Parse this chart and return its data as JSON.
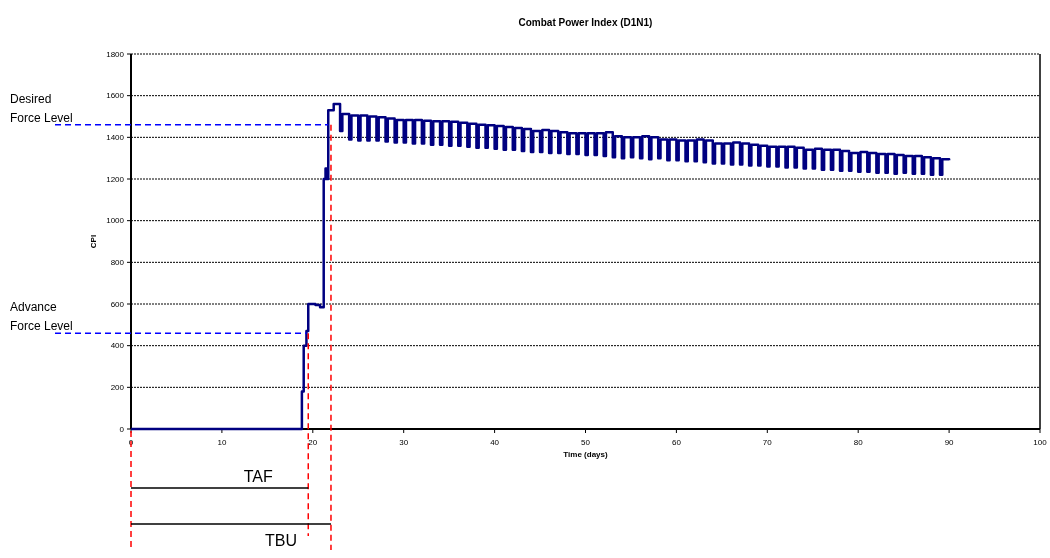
{
  "chart_data": {
    "type": "step",
    "title": "Combat Power Index (D1N1)",
    "xlabel": "Time (days)",
    "ylabel": "CPI",
    "xlim": [
      0,
      100
    ],
    "xticks": [
      0,
      10,
      20,
      30,
      40,
      50,
      60,
      70,
      80,
      90,
      100
    ],
    "ylim": [
      0,
      1800
    ],
    "yticks": [
      0,
      200,
      400,
      600,
      800,
      1000,
      1200,
      1400,
      1600,
      1800
    ],
    "grid": "y",
    "line_style": "solid",
    "series": [
      {
        "color": "#000080",
        "x": [
          0,
          18.8,
          19,
          19.3,
          19.5,
          20.3,
          20.8,
          21.2,
          21.4,
          21.6,
          21.7,
          22.3,
          23,
          23.25,
          24,
          24.25,
          25,
          25.25,
          26,
          26.25,
          27,
          27.25,
          28,
          28.25,
          29,
          29.25,
          30,
          30.25,
          31,
          31.25,
          32,
          32.25,
          33,
          33.25,
          34,
          34.25,
          35,
          35.25,
          36,
          36.25,
          37,
          37.25,
          38,
          38.25,
          39,
          39.25,
          40,
          40.25,
          41,
          41.25,
          42,
          42.25,
          43,
          43.25,
          44,
          44.25,
          45,
          45.25,
          46,
          46.25,
          47,
          47.25,
          48,
          48.25,
          49,
          49.25,
          50,
          50.25,
          51,
          51.25,
          52,
          52.25,
          53,
          53.25,
          54,
          54.25,
          55,
          55.25,
          56,
          56.25,
          57,
          57.25,
          58,
          58.25,
          59,
          59.25,
          60,
          60.25,
          61,
          61.25,
          62,
          62.25,
          63,
          63.25,
          64,
          64.25,
          65,
          65.25,
          66,
          66.25,
          67,
          67.25,
          68,
          68.25,
          69,
          69.25,
          70,
          70.25,
          71,
          71.25,
          72,
          72.25,
          73,
          73.25,
          74,
          74.25,
          75,
          75.25,
          76,
          76.25,
          77,
          77.25,
          78,
          78.25,
          79,
          79.25,
          80,
          80.25,
          81,
          81.25,
          82,
          82.25,
          83,
          83.25,
          84,
          84.25,
          85,
          85.25,
          86,
          86.25,
          87,
          87.25,
          88,
          88.25,
          89,
          89.25,
          90
        ],
        "values": [
          0,
          180,
          400,
          470,
          600,
          595,
          585,
          1200,
          1250,
          1200,
          1530,
          1560,
          1430,
          1512,
          1390,
          1505,
          1385,
          1505,
          1385,
          1500,
          1385,
          1497,
          1380,
          1490,
          1375,
          1483,
          1375,
          1483,
          1370,
          1483,
          1370,
          1480,
          1365,
          1477,
          1365,
          1477,
          1360,
          1475,
          1360,
          1470,
          1355,
          1465,
          1350,
          1460,
          1350,
          1458,
          1345,
          1455,
          1340,
          1450,
          1340,
          1445,
          1335,
          1440,
          1330,
          1430,
          1330,
          1435,
          1325,
          1430,
          1325,
          1425,
          1320,
          1420,
          1320,
          1420,
          1315,
          1420,
          1315,
          1420,
          1310,
          1425,
          1305,
          1405,
          1300,
          1400,
          1305,
          1400,
          1300,
          1405,
          1295,
          1400,
          1300,
          1390,
          1290,
          1390,
          1290,
          1385,
          1285,
          1385,
          1285,
          1390,
          1280,
          1385,
          1275,
          1370,
          1275,
          1370,
          1270,
          1375,
          1270,
          1370,
          1265,
          1365,
          1265,
          1360,
          1260,
          1355,
          1260,
          1355,
          1255,
          1355,
          1255,
          1350,
          1250,
          1340,
          1250,
          1345,
          1245,
          1340,
          1245,
          1340,
          1240,
          1335,
          1240,
          1325,
          1235,
          1330,
          1235,
          1325,
          1230,
          1320,
          1230,
          1320,
          1225,
          1315,
          1230,
          1310,
          1225,
          1310,
          1225,
          1305,
          1220,
          1300,
          1220,
          1295,
          1290
        ]
      }
    ],
    "ref_lines": [
      {
        "axis": "y",
        "value": 1460,
        "label": "Desired Force Level",
        "color": "#0000ff",
        "line_style": "dashed"
      },
      {
        "axis": "y",
        "value": 460,
        "label": "Advance Force Level",
        "color": "#0000ff",
        "line_style": "dashed"
      },
      {
        "axis": "x",
        "value": 19.5,
        "label": "TAF",
        "color": "#ff0000",
        "line_style": "dashed"
      },
      {
        "axis": "x",
        "value": 22,
        "label": "TBU",
        "color": "#ff0000",
        "line_style": "dashed"
      }
    ]
  }
}
